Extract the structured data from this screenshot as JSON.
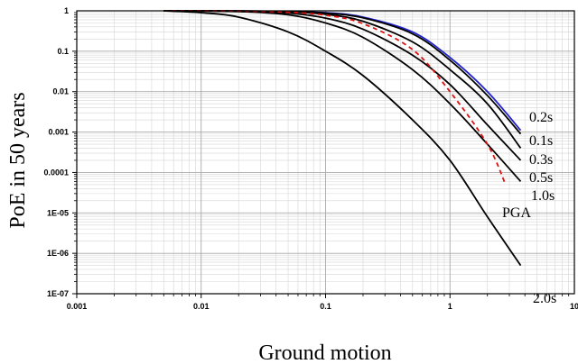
{
  "chart_data": {
    "type": "line",
    "title": "",
    "xlabel": "Ground motion",
    "ylabel": "PoE in 50 years",
    "x_scale": "log",
    "y_scale": "log",
    "xlim": [
      0.001,
      10
    ],
    "ylim": [
      1e-07,
      1
    ],
    "grid": true,
    "x_tick_labels": [
      "0.001",
      "0.01",
      "0.1",
      "1",
      "10"
    ],
    "y_tick_labels": [
      "1",
      "0.1",
      "0.01",
      "0.001",
      "0.0001",
      "1E-05",
      "1E-06",
      "1E-07"
    ],
    "series": [
      {
        "name": "0.2s",
        "color": "#2222cc",
        "dash": "solid",
        "x": [
          0.005,
          0.02,
          0.05,
          0.1,
          0.2,
          0.5,
          1.0,
          2.0,
          3.7
        ],
        "y": [
          1,
          0.99,
          0.96,
          0.9,
          0.7,
          0.3,
          0.07,
          0.01,
          0.0011
        ]
      },
      {
        "name": "0.1s",
        "color": "#000000",
        "dash": "solid",
        "x": [
          0.005,
          0.02,
          0.05,
          0.1,
          0.2,
          0.5,
          1.0,
          2.0,
          3.7
        ],
        "y": [
          1,
          0.99,
          0.96,
          0.88,
          0.67,
          0.27,
          0.06,
          0.008,
          0.0009
        ]
      },
      {
        "name": "0.3s",
        "color": "#000000",
        "dash": "solid",
        "x": [
          0.005,
          0.02,
          0.05,
          0.1,
          0.2,
          0.5,
          1.0,
          2.0,
          3.7
        ],
        "y": [
          1,
          0.99,
          0.94,
          0.82,
          0.55,
          0.17,
          0.035,
          0.005,
          0.0004
        ]
      },
      {
        "name": "0.5s",
        "color": "#000000",
        "dash": "solid",
        "x": [
          0.005,
          0.02,
          0.05,
          0.1,
          0.2,
          0.5,
          1.0,
          2.0,
          3.7
        ],
        "y": [
          1,
          0.98,
          0.88,
          0.66,
          0.35,
          0.08,
          0.015,
          0.0015,
          0.0002
        ]
      },
      {
        "name": "1.0s",
        "color": "#000000",
        "dash": "solid",
        "x": [
          0.005,
          0.02,
          0.05,
          0.1,
          0.2,
          0.5,
          1.0,
          2.0,
          3.7
        ],
        "y": [
          1,
          0.96,
          0.8,
          0.5,
          0.22,
          0.035,
          0.005,
          0.0005,
          6e-05
        ]
      },
      {
        "name": "PGA",
        "color": "#dd1111",
        "dash": "dashed",
        "x": [
          0.005,
          0.02,
          0.05,
          0.1,
          0.2,
          0.5,
          1.0,
          2.0,
          2.8
        ],
        "y": [
          1,
          0.99,
          0.92,
          0.78,
          0.48,
          0.11,
          0.01,
          0.0005,
          5e-05
        ]
      },
      {
        "name": "2.0s",
        "color": "#000000",
        "dash": "solid",
        "x": [
          0.005,
          0.01,
          0.02,
          0.05,
          0.1,
          0.2,
          0.5,
          1.0,
          2.0,
          3.7
        ],
        "y": [
          1,
          0.9,
          0.7,
          0.3,
          0.1,
          0.025,
          0.002,
          0.0002,
          8e-06,
          5e-07
        ]
      }
    ]
  }
}
